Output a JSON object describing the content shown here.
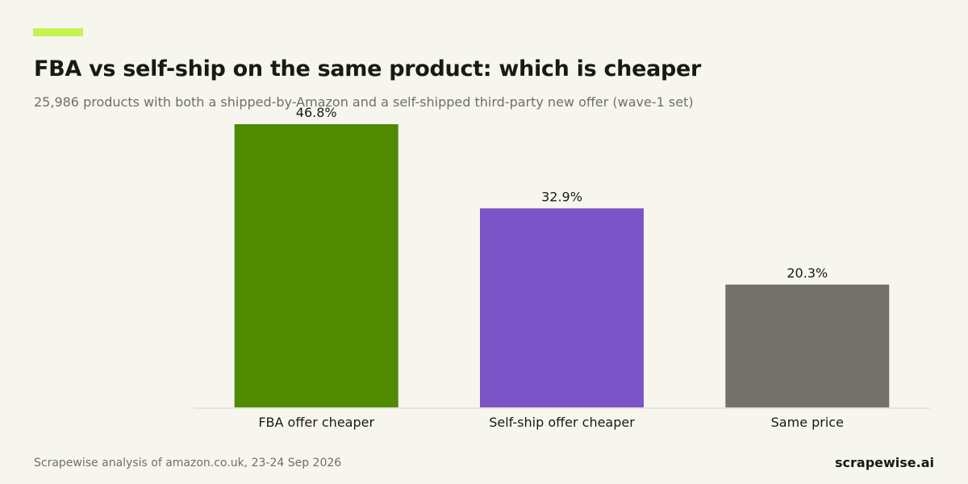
{
  "header": {
    "title": "FBA vs self-ship on the same product: which is cheaper",
    "subtitle": "25,986 products with both a shipped-by-Amazon and a self-shipped third-party new offer (wave-1 set)"
  },
  "footer": {
    "source": "Scrapewise analysis of amazon.co.uk, 23-24 Sep 2026",
    "brand": "scrapewise.ai"
  },
  "colors": {
    "accent": "#c6f24e",
    "background": "#f6f5ee",
    "baseline": "#e4e0cc"
  },
  "chart_data": {
    "type": "bar",
    "title": "FBA vs self-ship on the same product: which is cheaper",
    "subtitle": "25,986 products with both a shipped-by-Amazon and a self-shipped third-party new offer (wave-1 set)",
    "xlabel": "",
    "ylabel": "",
    "ylim": [
      0,
      50
    ],
    "grid": false,
    "categories": [
      "FBA offer cheaper",
      "Self-ship offer cheaper",
      "Same price"
    ],
    "values": [
      46.8,
      32.9,
      20.3
    ],
    "data_labels": [
      "46.8%",
      "32.9%",
      "20.3%"
    ],
    "bar_colors": [
      "#4f8a00",
      "#7b55c7",
      "#72726a"
    ]
  }
}
